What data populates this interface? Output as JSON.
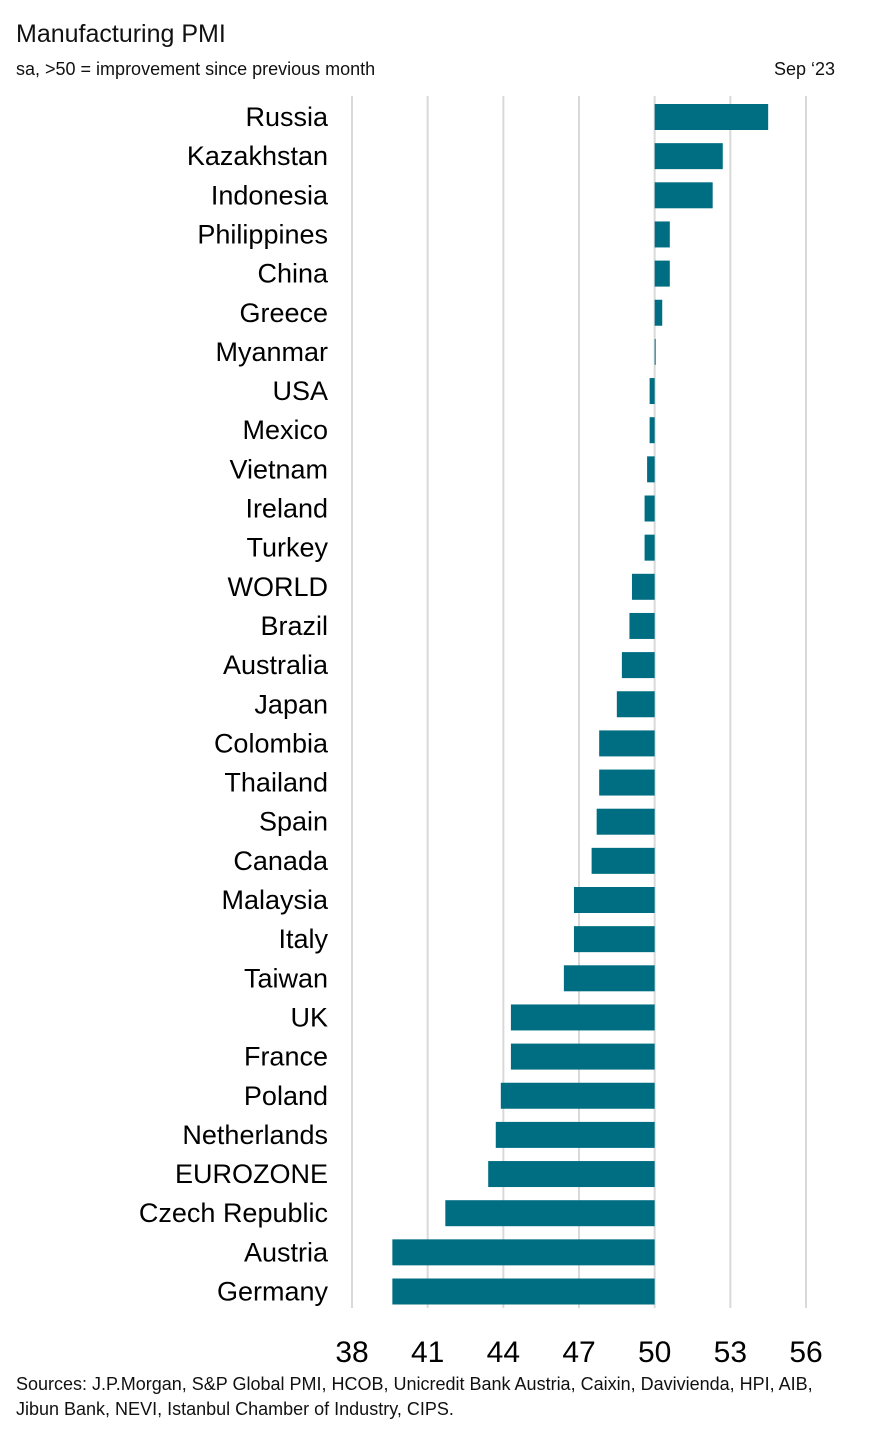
{
  "header": {
    "title": "Manufacturing PMI",
    "subtitle": "sa, >50 = improvement since previous month",
    "date": "Sep ‘23"
  },
  "footer": {
    "sources": "Sources: J.P.Morgan, S&P Global PMI, HCOB, Unicredit Bank Austria, Caixin, Davivienda, HPI, AIB, Jibun Bank, NEVI, Istanbul Chamber of Industry, CIPS."
  },
  "colors": {
    "bar": "#006E82",
    "grid": "#D9D9D9"
  },
  "chart_data": {
    "type": "bar",
    "orientation": "horizontal",
    "title": "Manufacturing PMI",
    "subtitle": "sa, >50 = improvement since previous month",
    "baseline": 50,
    "xlim": [
      38,
      56
    ],
    "xticks": [
      38,
      41,
      44,
      47,
      50,
      53,
      56
    ],
    "grid": true,
    "categories": [
      "Russia",
      "Kazakhstan",
      "Indonesia",
      "Philippines",
      "China",
      "Greece",
      "Myanmar",
      "USA",
      "Mexico",
      "Vietnam",
      "Ireland",
      "Turkey",
      "WORLD",
      "Brazil",
      "Australia",
      "Japan",
      "Colombia",
      "Thailand",
      "Spain",
      "Canada",
      "Malaysia",
      "Italy",
      "Taiwan",
      "UK",
      "France",
      "Poland",
      "Netherlands",
      "EUROZONE",
      "Czech Republic",
      "Austria",
      "Germany"
    ],
    "values": [
      54.5,
      52.7,
      52.3,
      50.6,
      50.6,
      50.3,
      50.0,
      49.8,
      49.8,
      49.7,
      49.6,
      49.6,
      49.1,
      49.0,
      48.7,
      48.5,
      47.8,
      47.8,
      47.7,
      47.5,
      46.8,
      46.8,
      46.4,
      44.3,
      44.3,
      43.9,
      43.7,
      43.4,
      41.7,
      39.6,
      39.6
    ]
  }
}
